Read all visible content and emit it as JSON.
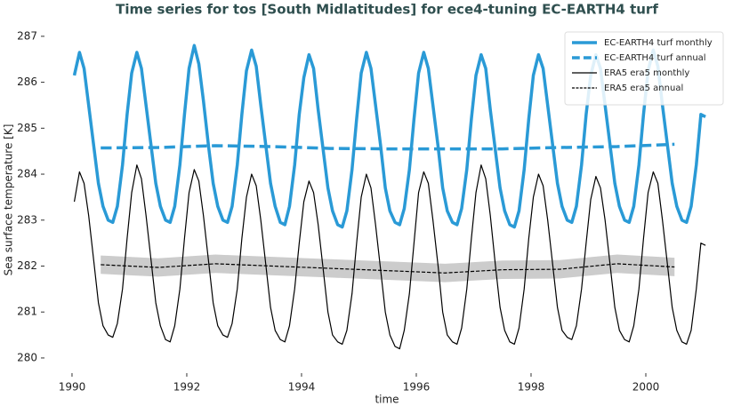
{
  "chart_data": {
    "type": "line",
    "title": "Time series for tos [South Midlatitudes] for ece4-tuning EC-EARTH4 turf",
    "xlabel": "time",
    "ylabel": "Sea surface temperature [K]",
    "xlim": [
      1989.52,
      2001.38
    ],
    "xticks": [
      1990,
      1992,
      1994,
      1996,
      1998,
      2000
    ],
    "ylim": [
      279.67,
      287.21
    ],
    "yticks": [
      280,
      281,
      282,
      283,
      284,
      285,
      286,
      287
    ],
    "grid": false,
    "legend": "upper right",
    "series": [
      {
        "name": "EC-EARTH4 turf monthly",
        "color": "#2a9ad6",
        "linestyle": "solid",
        "linewidth": 3.5,
        "x": [
          1990.04,
          1990.13,
          1990.21,
          1990.29,
          1990.38,
          1990.46,
          1990.54,
          1990.63,
          1990.71,
          1990.79,
          1990.88,
          1990.96,
          1991.04,
          1991.13,
          1991.21,
          1991.29,
          1991.38,
          1991.46,
          1991.54,
          1991.63,
          1991.71,
          1991.79,
          1991.88,
          1991.96,
          1992.04,
          1992.13,
          1992.21,
          1992.29,
          1992.38,
          1992.46,
          1992.54,
          1992.63,
          1992.71,
          1992.79,
          1992.88,
          1992.96,
          1993.04,
          1993.13,
          1993.21,
          1993.29,
          1993.38,
          1993.46,
          1993.54,
          1993.63,
          1993.71,
          1993.79,
          1993.88,
          1993.96,
          1994.04,
          1994.13,
          1994.21,
          1994.29,
          1994.38,
          1994.46,
          1994.54,
          1994.63,
          1994.71,
          1994.79,
          1994.88,
          1994.96,
          1995.04,
          1995.13,
          1995.21,
          1995.29,
          1995.38,
          1995.46,
          1995.54,
          1995.63,
          1995.71,
          1995.79,
          1995.88,
          1995.96,
          1996.04,
          1996.13,
          1996.21,
          1996.29,
          1996.38,
          1996.46,
          1996.54,
          1996.63,
          1996.71,
          1996.79,
          1996.88,
          1996.96,
          1997.04,
          1997.13,
          1997.21,
          1997.29,
          1997.38,
          1997.46,
          1997.54,
          1997.63,
          1997.71,
          1997.79,
          1997.88,
          1997.96,
          1998.04,
          1998.13,
          1998.21,
          1998.29,
          1998.38,
          1998.46,
          1998.54,
          1998.63,
          1998.71,
          1998.79,
          1998.88,
          1998.96,
          1999.04,
          1999.13,
          1999.21,
          1999.29,
          1999.38,
          1999.46,
          1999.54,
          1999.63,
          1999.71,
          1999.79,
          1999.88,
          1999.96,
          2000.04,
          2000.13,
          2000.21,
          2000.29,
          2000.38,
          2000.46,
          2000.54,
          2000.63,
          2000.71,
          2000.79,
          2000.88,
          2000.96,
          2001.04
        ],
        "values": [
          286.15,
          286.65,
          286.3,
          285.5,
          284.6,
          283.8,
          283.3,
          283.0,
          282.95,
          283.3,
          284.2,
          285.3,
          286.2,
          286.65,
          286.3,
          285.5,
          284.6,
          283.8,
          283.3,
          283.0,
          282.95,
          283.3,
          284.2,
          285.3,
          286.3,
          286.8,
          286.4,
          285.6,
          284.6,
          283.8,
          283.3,
          283.0,
          282.95,
          283.3,
          284.2,
          285.3,
          286.25,
          286.7,
          286.35,
          285.5,
          284.6,
          283.8,
          283.3,
          282.95,
          282.9,
          283.3,
          284.2,
          285.3,
          286.1,
          286.6,
          286.3,
          285.4,
          284.5,
          283.7,
          283.2,
          282.9,
          282.85,
          283.2,
          284.1,
          285.2,
          286.2,
          286.65,
          286.3,
          285.5,
          284.6,
          283.7,
          283.2,
          282.95,
          282.9,
          283.25,
          284.1,
          285.2,
          286.2,
          286.65,
          286.3,
          285.5,
          284.6,
          283.7,
          283.2,
          282.95,
          282.9,
          283.25,
          284.1,
          285.2,
          286.15,
          286.6,
          286.3,
          285.4,
          284.5,
          283.7,
          283.2,
          282.9,
          282.85,
          283.2,
          284.1,
          285.2,
          286.15,
          286.6,
          286.3,
          285.5,
          284.6,
          283.8,
          283.3,
          283.0,
          282.95,
          283.3,
          284.2,
          285.3,
          286.15,
          286.6,
          286.3,
          285.5,
          284.6,
          283.8,
          283.3,
          283.0,
          282.95,
          283.3,
          284.2,
          285.3,
          286.25,
          286.7,
          286.35,
          285.5,
          284.6,
          283.8,
          283.3,
          283.0,
          282.95,
          283.3,
          284.2,
          285.3,
          285.25
        ]
      },
      {
        "name": "EC-EARTH4 turf annual",
        "color": "#2a9ad6",
        "linestyle": "dashed",
        "linewidth": 3.5,
        "x": [
          1990.5,
          1991.5,
          1992.5,
          1993.5,
          1994.5,
          1995.5,
          1996.5,
          1997.5,
          1998.5,
          1999.5,
          2000.5
        ],
        "values": [
          284.57,
          284.58,
          284.62,
          284.6,
          284.56,
          284.55,
          284.55,
          284.55,
          284.58,
          284.6,
          284.65
        ]
      },
      {
        "name": "ERA5 era5 monthly",
        "color": "#000000",
        "linestyle": "solid",
        "linewidth": 1.2,
        "x": [
          1990.04,
          1990.13,
          1990.21,
          1990.29,
          1990.38,
          1990.46,
          1990.54,
          1990.63,
          1990.71,
          1990.79,
          1990.88,
          1990.96,
          1991.04,
          1991.13,
          1991.21,
          1991.29,
          1991.38,
          1991.46,
          1991.54,
          1991.63,
          1991.71,
          1991.79,
          1991.88,
          1991.96,
          1992.04,
          1992.13,
          1992.21,
          1992.29,
          1992.38,
          1992.46,
          1992.54,
          1992.63,
          1992.71,
          1992.79,
          1992.88,
          1992.96,
          1993.04,
          1993.13,
          1993.21,
          1993.29,
          1993.38,
          1993.46,
          1993.54,
          1993.63,
          1993.71,
          1993.79,
          1993.88,
          1993.96,
          1994.04,
          1994.13,
          1994.21,
          1994.29,
          1994.38,
          1994.46,
          1994.54,
          1994.63,
          1994.71,
          1994.79,
          1994.88,
          1994.96,
          1995.04,
          1995.13,
          1995.21,
          1995.29,
          1995.38,
          1995.46,
          1995.54,
          1995.63,
          1995.71,
          1995.79,
          1995.88,
          1995.96,
          1996.04,
          1996.13,
          1996.21,
          1996.29,
          1996.38,
          1996.46,
          1996.54,
          1996.63,
          1996.71,
          1996.79,
          1996.88,
          1996.96,
          1997.04,
          1997.13,
          1997.21,
          1997.29,
          1997.38,
          1997.46,
          1997.54,
          1997.63,
          1997.71,
          1997.79,
          1997.88,
          1997.96,
          1998.04,
          1998.13,
          1998.21,
          1998.29,
          1998.38,
          1998.46,
          1998.54,
          1998.63,
          1998.71,
          1998.79,
          1998.88,
          1998.96,
          1999.04,
          1999.13,
          1999.21,
          1999.29,
          1999.38,
          1999.46,
          1999.54,
          1999.63,
          1999.71,
          1999.79,
          1999.88,
          1999.96,
          2000.04,
          2000.13,
          2000.21,
          2000.29,
          2000.38,
          2000.46,
          2000.54,
          2000.63,
          2000.71,
          2000.79,
          2000.88,
          2000.96,
          2001.04
        ],
        "values": [
          283.4,
          284.05,
          283.8,
          283.1,
          282.1,
          281.2,
          280.7,
          280.5,
          280.45,
          280.75,
          281.5,
          282.6,
          283.6,
          284.2,
          283.9,
          283.1,
          282.1,
          281.2,
          280.7,
          280.4,
          280.35,
          280.7,
          281.5,
          282.6,
          283.6,
          284.1,
          283.85,
          283.1,
          282.1,
          281.2,
          280.7,
          280.5,
          280.45,
          280.75,
          281.5,
          282.6,
          283.5,
          284.0,
          283.75,
          283.0,
          282.0,
          281.1,
          280.6,
          280.4,
          280.35,
          280.7,
          281.5,
          282.5,
          283.4,
          283.85,
          283.6,
          282.9,
          281.9,
          281.0,
          280.5,
          280.35,
          280.3,
          280.6,
          281.4,
          282.5,
          283.5,
          284.0,
          283.7,
          282.9,
          281.9,
          281.0,
          280.5,
          280.25,
          280.2,
          280.6,
          281.4,
          282.5,
          283.6,
          284.05,
          283.8,
          283.0,
          282.0,
          281.0,
          280.5,
          280.35,
          280.3,
          280.65,
          281.5,
          282.6,
          283.6,
          284.2,
          283.9,
          283.1,
          282.0,
          281.1,
          280.6,
          280.35,
          280.3,
          280.65,
          281.5,
          282.6,
          283.5,
          284.0,
          283.75,
          283.0,
          282.0,
          281.1,
          280.6,
          280.45,
          280.4,
          280.7,
          281.5,
          282.5,
          283.45,
          283.95,
          283.7,
          283.0,
          282.0,
          281.1,
          280.6,
          280.4,
          280.35,
          280.7,
          281.5,
          282.6,
          283.6,
          284.05,
          283.8,
          283.0,
          282.0,
          281.1,
          280.6,
          280.35,
          280.3,
          280.6,
          281.5,
          282.5,
          282.45
        ]
      },
      {
        "name": "ERA5 era5 annual",
        "color": "#000000",
        "linestyle": "dashed",
        "linewidth": 1.2,
        "x": [
          1990.5,
          1991.5,
          1992.5,
          1993.5,
          1994.5,
          1995.5,
          1996.5,
          1997.5,
          1998.5,
          1999.5,
          2000.5
        ],
        "values": [
          282.03,
          281.97,
          282.05,
          282.0,
          281.95,
          281.9,
          281.85,
          281.92,
          281.93,
          282.05,
          281.98
        ],
        "std": [
          0.2,
          0.2,
          0.2,
          0.2,
          0.2,
          0.2,
          0.2,
          0.2,
          0.2,
          0.2,
          0.2
        ],
        "band_color": "#cccccc"
      }
    ]
  }
}
